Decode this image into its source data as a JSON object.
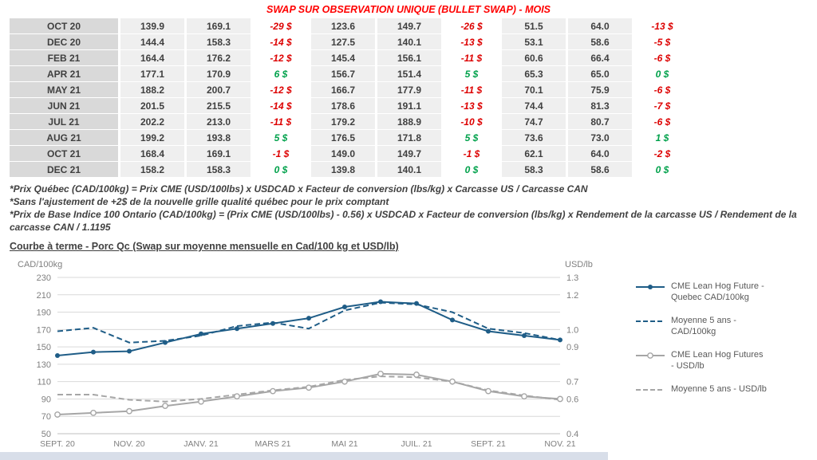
{
  "title": "SWAP SUR OBSERVATION UNIQUE (BULLET SWAP) - MOIS",
  "table": {
    "rows": [
      {
        "month": "OCT 20",
        "values": [
          "139.9",
          "169.1",
          "-29 $",
          "123.6",
          "149.7",
          "-26 $",
          "51.5",
          "64.0",
          "-13 $"
        ]
      },
      {
        "month": "DEC 20",
        "values": [
          "144.4",
          "158.3",
          "-14 $",
          "127.5",
          "140.1",
          "-13 $",
          "53.1",
          "58.6",
          "-5 $"
        ]
      },
      {
        "month": "FEB 21",
        "values": [
          "164.4",
          "176.2",
          "-12 $",
          "145.4",
          "156.1",
          "-11 $",
          "60.6",
          "66.4",
          "-6 $"
        ]
      },
      {
        "month": "APR 21",
        "values": [
          "177.1",
          "170.9",
          "6 $",
          "156.7",
          "151.4",
          "5 $",
          "65.3",
          "65.0",
          "0 $"
        ]
      },
      {
        "month": "MAY 21",
        "values": [
          "188.2",
          "200.7",
          "-12 $",
          "166.7",
          "177.9",
          "-11 $",
          "70.1",
          "75.9",
          "-6 $"
        ]
      },
      {
        "month": "JUN 21",
        "values": [
          "201.5",
          "215.5",
          "-14 $",
          "178.6",
          "191.1",
          "-13 $",
          "74.4",
          "81.3",
          "-7 $"
        ]
      },
      {
        "month": "JUL 21",
        "values": [
          "202.2",
          "213.0",
          "-11 $",
          "179.2",
          "188.9",
          "-10 $",
          "74.7",
          "80.7",
          "-6 $"
        ]
      },
      {
        "month": "AUG 21",
        "values": [
          "199.2",
          "193.8",
          "5 $",
          "176.5",
          "171.8",
          "5 $",
          "73.6",
          "73.0",
          "1 $"
        ]
      },
      {
        "month": "OCT 21",
        "values": [
          "168.4",
          "169.1",
          "-1 $",
          "149.0",
          "149.7",
          "-1 $",
          "62.1",
          "64.0",
          "-2 $"
        ]
      },
      {
        "month": "DEC 21",
        "values": [
          "158.2",
          "158.3",
          "0 $",
          "139.8",
          "140.1",
          "0 $",
          "58.3",
          "58.6",
          "0 $"
        ]
      }
    ]
  },
  "footnotes": [
    "*Prix Québec (CAD/100kg) = Prix CME (USD/100lbs) x USDCAD x Facteur de conversion (lbs/kg) x Carcasse US / Carcasse CAN",
    "*Sans l'ajustement de +2$ de la nouvelle grille qualité québec pour le prix comptant",
    "*Prix de Base Indice 100 Ontario (CAD/100kg) = (Prix CME (USD/100lbs) - 0.56) x USDCAD x Facteur de conversion (lbs/kg) x Rendement de la carcasse US / Rendement de la carcasse CAN / 1.1195"
  ],
  "chart_heading": "Courbe à terme - Porc Qc (Swap sur moyenne mensuelle en Cad/100 kg et USD/lb)",
  "chart_data": {
    "type": "line",
    "n_points": 15,
    "x_tick_indices": [
      0,
      2,
      4,
      6,
      8,
      10,
      12,
      14
    ],
    "x_tick_labels": [
      "SEPT. 20",
      "NOV. 20",
      "JANV. 21",
      "MARS 21",
      "MAI 21",
      "JUIL. 21",
      "SEPT. 21",
      "NOV. 21"
    ],
    "left_axis": {
      "label": "CAD/100kg",
      "min": 50,
      "max": 230,
      "ticks": [
        230,
        210,
        190,
        170,
        150,
        130,
        110,
        90,
        70,
        50
      ]
    },
    "right_axis": {
      "label": "USD/lb",
      "min": 0.4,
      "max": 1.3,
      "ticks": [
        "1.3",
        "1.2",
        "1.0",
        "0.9",
        "0.7",
        "0.6",
        "0.4"
      ]
    },
    "grid": true,
    "legend_position": "right",
    "series": [
      {
        "name": "CME Lean Hog Future - Quebec CAD/100kg",
        "axis": "left",
        "style": "solid",
        "marker": "dot",
        "color": "#1f5d87",
        "values": [
          140,
          144,
          145,
          155,
          165,
          171,
          177,
          183,
          196,
          202,
          200,
          181,
          168,
          163,
          158
        ]
      },
      {
        "name": "Moyenne 5 ans - CAD/100kg",
        "axis": "left",
        "style": "dashed",
        "marker": "none",
        "color": "#1f5d87",
        "values": [
          168,
          172,
          155,
          157,
          163,
          174,
          178,
          171,
          192,
          201,
          199,
          190,
          171,
          166,
          158
        ]
      },
      {
        "name": "CME Lean Hog Futures - USD/lb",
        "axis": "right",
        "style": "solid",
        "marker": "circle",
        "color": "#a6a6a6",
        "values": [
          0.51,
          0.52,
          0.53,
          0.56,
          0.585,
          0.615,
          0.645,
          0.665,
          0.7,
          0.745,
          0.74,
          0.7,
          0.645,
          0.615,
          0.6
        ]
      },
      {
        "name": "Moyenne 5 ans - USD/lb",
        "axis": "right",
        "style": "dashed",
        "marker": "none",
        "color": "#a6a6a6",
        "values": [
          0.625,
          0.625,
          0.595,
          0.585,
          0.6,
          0.625,
          0.65,
          0.67,
          0.71,
          0.73,
          0.725,
          0.7,
          0.65,
          0.62,
          0.595
        ]
      }
    ]
  },
  "colors": {
    "negative": "#dd0000",
    "positive": "#00a14b",
    "title_red": "#ff0000",
    "blue": "#1f5d87",
    "gray": "#a6a6a6"
  }
}
